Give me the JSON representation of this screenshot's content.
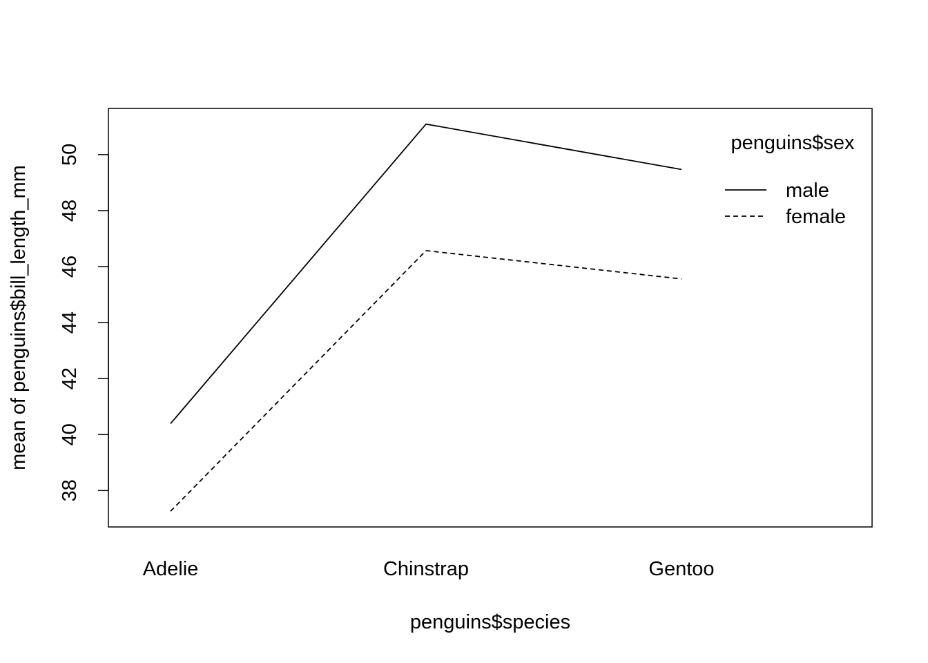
{
  "chart_data": {
    "type": "line",
    "title": "",
    "xlabel": "penguins$species",
    "ylabel": "mean of  penguins$bill_length_mm",
    "categories": [
      "Adelie",
      "Chinstrap",
      "Gentoo"
    ],
    "series": [
      {
        "name": "male",
        "values": [
          40.39,
          51.09,
          49.47
        ],
        "line_style": "solid"
      },
      {
        "name": "female",
        "values": [
          37.26,
          46.57,
          45.56
        ],
        "line_style": "dashed"
      }
    ],
    "ylim": [
      36.7,
      51.65
    ],
    "yticks": [
      "38",
      "40",
      "42",
      "44",
      "46",
      "48",
      "50"
    ],
    "legend": {
      "title": "penguins$sex",
      "position": "top-right"
    },
    "grid": false,
    "colors": {
      "line": "#000000",
      "background": "#ffffff"
    }
  }
}
